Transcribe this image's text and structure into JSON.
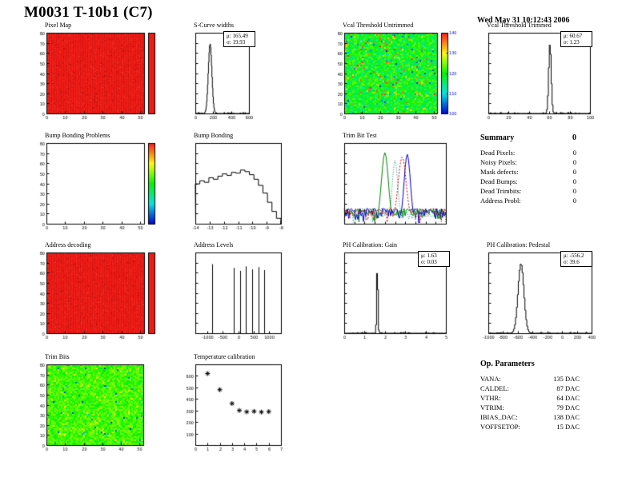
{
  "page": {
    "title": "M0031 T-10b1 (C7)",
    "timestamp": "Wed May 31 10:12:43 2006"
  },
  "summary": {
    "title": "Summary",
    "total": "0",
    "rows": [
      {
        "label": "Dead Pixels:",
        "value": "0"
      },
      {
        "label": "Noisy Pixels:",
        "value": "0"
      },
      {
        "label": "Mask defects:",
        "value": "0"
      },
      {
        "label": "Dead Bumps:",
        "value": "0"
      },
      {
        "label": "Dead Trimbits:",
        "value": "0"
      },
      {
        "label": "Address Probl:",
        "value": "0"
      }
    ]
  },
  "op_parameters": {
    "title": "Op. Parameters",
    "rows": [
      {
        "label": "VANA:",
        "value": "135 DAC"
      },
      {
        "label": "CALDEL:",
        "value": "87 DAC"
      },
      {
        "label": "VTHR:",
        "value": "64 DAC"
      },
      {
        "label": "VTRIM:",
        "value": "79 DAC"
      },
      {
        "label": "IBIAS_DAC:",
        "value": "138 DAC"
      },
      {
        "label": "VOFFSETOP:",
        "value": "15 DAC"
      }
    ]
  },
  "chart_data": [
    {
      "id": "pixel-map",
      "title": "Pixel Map",
      "type": "heatmap",
      "palette": "red",
      "x_range": [
        0,
        52
      ],
      "y_range": [
        0,
        80
      ],
      "x_ticks": [
        0,
        10,
        20,
        30,
        40,
        50
      ],
      "y_ticks": [
        0,
        10,
        20,
        30,
        40,
        50,
        60,
        70,
        80
      ],
      "colorbar": {
        "palette": "red",
        "labels": []
      }
    },
    {
      "id": "s-curve-widths",
      "title": "S-Curve widths",
      "type": "hist_gauss",
      "mu": 165.49,
      "sigma": 19.93,
      "x_range": [
        0,
        600
      ],
      "x_ticks": [
        0,
        200,
        400,
        600
      ],
      "stats": [
        "μ: 165.49",
        "σ: 19.93"
      ]
    },
    {
      "id": "vcal-threshold-untrimmed",
      "title": "Vcal Threshold Untrimmed",
      "type": "heatmap",
      "palette": "rainbow",
      "noise": {
        "mean": 0.48,
        "spread": 0.13,
        "hot": 0.05,
        "cold": 0.02,
        "hot_v": [
          0.68,
          1.0
        ]
      },
      "x_range": [
        0,
        52
      ],
      "y_range": [
        0,
        80
      ],
      "x_ticks": [
        0,
        10,
        20,
        30,
        40,
        50
      ],
      "y_ticks": [
        0,
        10,
        20,
        30,
        40,
        50,
        60,
        70,
        80
      ],
      "colorbar": {
        "palette": "rainbow",
        "labels": [
          100,
          110,
          120,
          130,
          140
        ]
      }
    },
    {
      "id": "vcal-threshold-trimmed",
      "title": "Vcal Threshold Trimmed",
      "type": "hist_gauss",
      "mu": 60.67,
      "sigma": 1.23,
      "x_range": [
        0,
        100
      ],
      "x_ticks": [
        0,
        20,
        40,
        60,
        80,
        100
      ],
      "stats": [
        "μ: 60.67",
        "σ: 1.23"
      ]
    },
    {
      "id": "bump-bonding-problems",
      "title": "Bump Bonding Problems",
      "type": "heatmap",
      "palette": "empty",
      "x_range": [
        0,
        52
      ],
      "y_range": [
        0,
        80
      ],
      "x_ticks": [
        0,
        10,
        20,
        30,
        40,
        50
      ],
      "y_ticks": [
        0,
        10,
        20,
        30,
        40,
        50,
        60,
        70,
        80
      ],
      "colorbar": {
        "palette": "rainbow",
        "labels": []
      }
    },
    {
      "id": "bump-bonding",
      "title": "Bump Bonding",
      "type": "hist_steps",
      "values": [
        0.52,
        0.56,
        0.54,
        0.6,
        0.58,
        0.62,
        0.65,
        0.63,
        0.67,
        0.66,
        0.7,
        0.68,
        0.64,
        0.58,
        0.5,
        0.4,
        0.28,
        0.16,
        0.07
      ],
      "x_range": [
        -14,
        -8
      ],
      "x_ticks": [
        -14,
        -13,
        -12,
        -11,
        -10,
        -9,
        -8
      ]
    },
    {
      "id": "trim-bit-test",
      "title": "Trim Bit Test",
      "type": "multi_hist",
      "log_y": true,
      "series": [
        {
          "color": "#008800",
          "center": 0.4,
          "sigma": 0.022,
          "peak": 0.95,
          "dash": []
        },
        {
          "color": "#0000cc",
          "center": 0.62,
          "sigma": 0.02,
          "peak": 0.9,
          "dash": []
        },
        {
          "color": "#cc0000",
          "center": 0.57,
          "sigma": 0.026,
          "peak": 0.82,
          "dash": [
            2,
            2
          ]
        },
        {
          "color": "#007777",
          "center": 0.5,
          "sigma": 0.018,
          "peak": 0.72,
          "dash": [
            1,
            2
          ]
        }
      ]
    },
    {
      "id": "address-decoding",
      "title": "Address decoding",
      "type": "heatmap",
      "palette": "red",
      "x_range": [
        0,
        52
      ],
      "y_range": [
        0,
        80
      ],
      "x_ticks": [
        0,
        10,
        20,
        30,
        40,
        50
      ],
      "y_ticks": [
        0,
        10,
        20,
        30,
        40,
        50,
        60,
        70,
        80
      ],
      "colorbar": {
        "palette": "red",
        "labels": []
      }
    },
    {
      "id": "address-levels",
      "title": "Address Levels",
      "type": "spikes",
      "x_range": [
        -1400,
        1400
      ],
      "x_ticks": [
        -1000,
        -500,
        0,
        500,
        1000
      ],
      "spikes": [
        {
          "x": -840,
          "h": 0.93
        },
        {
          "x": -140,
          "h": 0.88
        },
        {
          "x": 60,
          "h": 0.84
        },
        {
          "x": 260,
          "h": 0.9
        },
        {
          "x": 460,
          "h": 0.86
        },
        {
          "x": 660,
          "h": 0.89
        },
        {
          "x": 860,
          "h": 0.85
        }
      ]
    },
    {
      "id": "ph-calibration-gain",
      "title": "PH Calibration: Gain",
      "type": "hist_gauss",
      "mu": 1.63,
      "sigma": 0.03,
      "x_range": [
        0,
        5
      ],
      "x_ticks": [
        0,
        1,
        2,
        3,
        4,
        5
      ],
      "stats": [
        "μ: 1.63",
        "σ: 0.03"
      ]
    },
    {
      "id": "ph-calibration-pedestal",
      "title": "PH Calibration: Pedestal",
      "type": "hist_gauss",
      "mu": -556.2,
      "sigma": 39.6,
      "x_range": [
        -1000,
        400
      ],
      "x_ticks": [
        -1000,
        -800,
        -600,
        -400,
        -200,
        0,
        200,
        400
      ],
      "stats": [
        "μ: -556.2",
        "σ: 39.6"
      ]
    },
    {
      "id": "trim-bits",
      "title": "Trim Bits",
      "type": "heatmap",
      "palette": "rainbow",
      "noise": {
        "mean": 0.56,
        "spread": 0.07,
        "hot": 0.06,
        "cold": 0.01,
        "hot_v": [
          0.62,
          0.78
        ]
      },
      "x_range": [
        0,
        52
      ],
      "y_range": [
        0,
        80
      ],
      "x_ticks": [
        0,
        10,
        20,
        30,
        40,
        50
      ],
      "y_ticks": [
        0,
        10,
        20,
        30,
        40,
        50,
        60,
        70,
        80
      ]
    },
    {
      "id": "temperature-calibration",
      "title": "Temperature calibration",
      "type": "scatter",
      "marker": "asterisk",
      "x_range": [
        0,
        7
      ],
      "y_range": [
        0,
        700
      ],
      "x_ticks": [
        0,
        1,
        2,
        3,
        4,
        5,
        6,
        7
      ],
      "y_ticks": [
        100,
        200,
        300,
        400,
        500,
        600
      ],
      "points": [
        [
          1,
          620
        ],
        [
          2,
          480
        ],
        [
          3,
          360
        ],
        [
          3.6,
          300
        ],
        [
          4.2,
          288
        ],
        [
          4.8,
          292
        ],
        [
          5.4,
          286
        ],
        [
          6,
          290
        ]
      ]
    }
  ]
}
